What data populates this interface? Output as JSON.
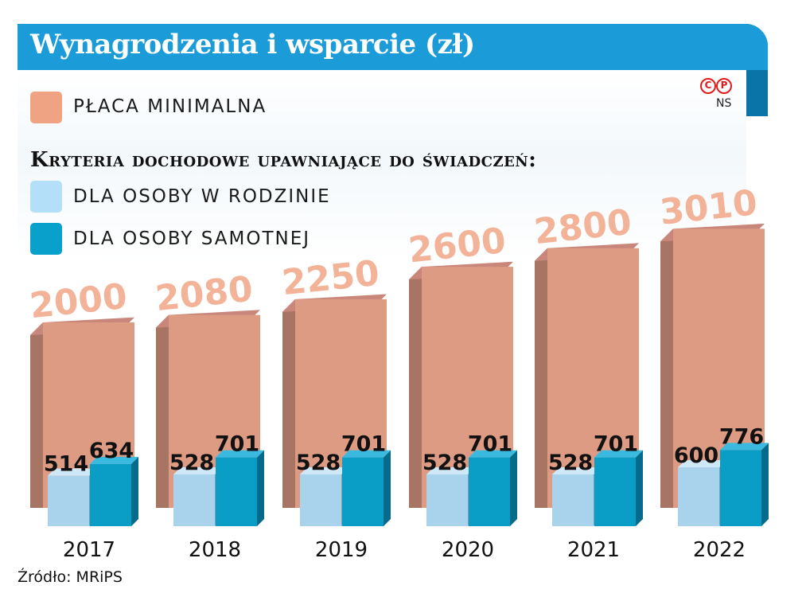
{
  "title": "Wynagrodzenia i wsparcie (zł)",
  "subheading": "Kryteria dochodowe upawniające do świadczeń:",
  "logo": {
    "mark_left": "C",
    "mark_right": "P",
    "text": "NS"
  },
  "source": "Źródło: MRiPS",
  "legend": [
    {
      "label": "PŁACA MINIMALNA",
      "color": "#f0a383"
    },
    {
      "label": "DLA OSOBY W RODZINIE",
      "color": "#b3e0f8"
    },
    {
      "label": "DLA OSOBY SAMOTNEJ",
      "color": "#0aa0cc"
    }
  ],
  "colors": {
    "min_wage_front": "#dd9b84",
    "min_wage_side": "#a87464",
    "min_wage_top": "#c8877a",
    "min_wage_label": "#f2b398",
    "family_front": "#a9d2ec",
    "family_side": "#7f9fb5",
    "family_top": "#cfe8f7",
    "single_front": "#0a9dc6",
    "single_side": "#066b8a",
    "single_top": "#3cb9df",
    "header": "#1b9cd8"
  },
  "chart_data": {
    "type": "bar",
    "categories": [
      "2017",
      "2018",
      "2019",
      "2020",
      "2021",
      "2022"
    ],
    "series": [
      {
        "name": "PŁACA MINIMALNA",
        "values": [
          2000,
          2080,
          2250,
          2600,
          2800,
          3010
        ]
      },
      {
        "name": "DLA OSOBY W RODZINIE",
        "values": [
          514,
          528,
          528,
          528,
          528,
          600
        ]
      },
      {
        "name": "DLA OSOBY SAMOTNEJ",
        "values": [
          634,
          701,
          701,
          701,
          701,
          776
        ]
      }
    ],
    "grid": false,
    "legend_position": "top-left"
  }
}
